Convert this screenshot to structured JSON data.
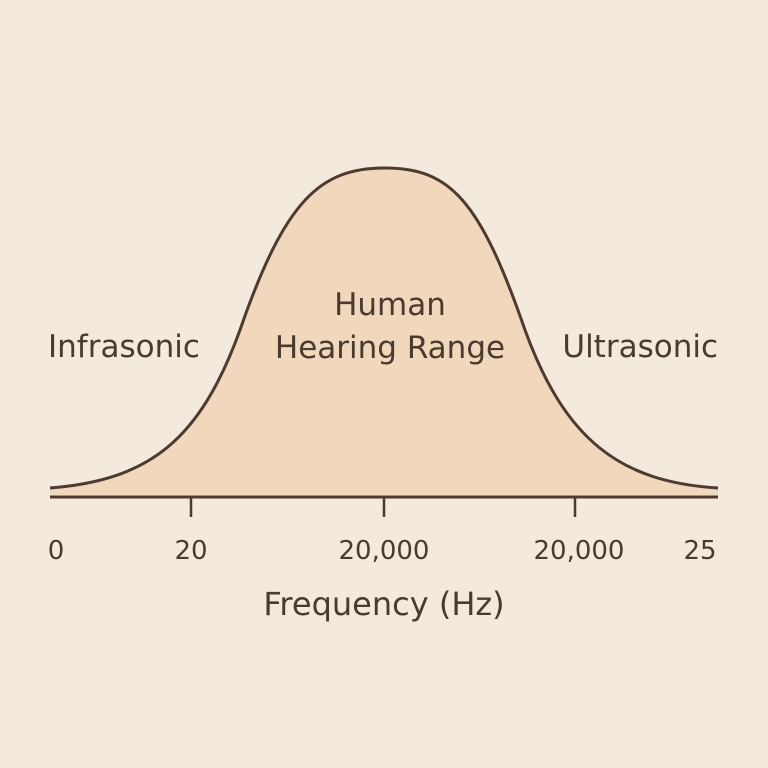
{
  "colors": {
    "background": "#f3e9dc",
    "fill": "#f1d8bd",
    "stroke": "#4e3b30",
    "text": "#4a3a30"
  },
  "regions": {
    "left": "Infrasonic",
    "center_line1": "Human",
    "center_line2": "Hearing Range",
    "right": "Ultrasonic"
  },
  "ticks": {
    "t0": "0",
    "t1": "20",
    "t2": "20,000",
    "t3": "20,000",
    "t4": "25"
  },
  "axis": {
    "title": "Frequency (Hz)"
  }
}
